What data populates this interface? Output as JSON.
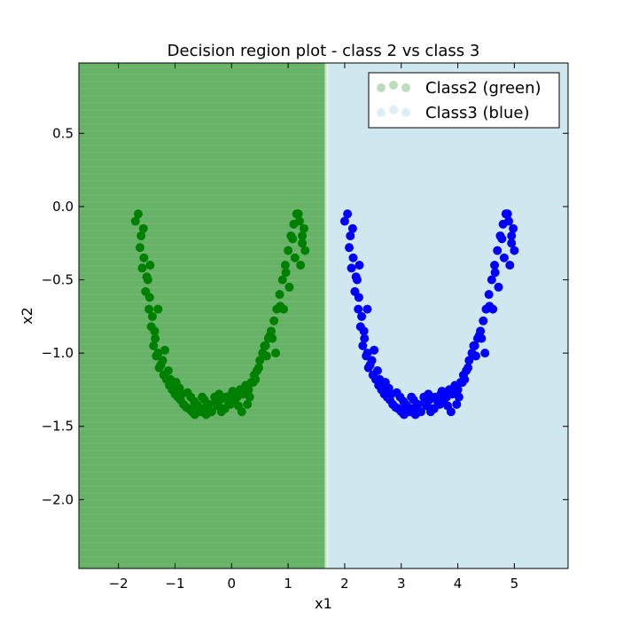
{
  "chart_data": {
    "type": "scatter",
    "title": "Decision region plot - class 2 vs class 3",
    "xlabel": "x1",
    "ylabel": "x2",
    "xlim": [
      -2.7,
      5.95
    ],
    "ylim": [
      -2.47,
      0.98
    ],
    "xticks": [
      -2,
      -1,
      0,
      1,
      2,
      3,
      4,
      5
    ],
    "yticks": [
      0.5,
      0.0,
      -0.5,
      -1.0,
      -1.5,
      -2.0
    ],
    "xtick_labels": [
      "−2",
      "−1",
      "0",
      "1",
      "2",
      "3",
      "4",
      "5"
    ],
    "ytick_labels": [
      "0.5",
      "0.0",
      "−0.5",
      "−1.0",
      "−1.5",
      "−2.0"
    ],
    "grid": false,
    "legend_position": "top-right",
    "decision_boundary_x": 1.68,
    "regions": [
      {
        "class": "Class2",
        "x_range": [
          -2.7,
          1.68
        ],
        "color": "#66b266"
      },
      {
        "class": "Class3",
        "x_range": [
          1.68,
          5.95
        ],
        "color": "#cfe7ef"
      }
    ],
    "series": [
      {
        "name": "Class2 (green)",
        "color": "#008000",
        "legend_color": "#bcdcbc",
        "x": [
          -1.65,
          -1.6,
          -1.55,
          -1.5,
          -1.45,
          -1.4,
          -1.35,
          -1.3,
          -1.25,
          -1.7,
          -1.62,
          -1.58,
          -1.52,
          -1.46,
          -1.42,
          -1.38,
          -1.33,
          -1.28,
          -1.2,
          -1.15,
          -1.1,
          -1.05,
          -1.0,
          -0.95,
          -0.9,
          -0.85,
          -0.8,
          -0.75,
          -0.7,
          -0.65,
          -0.6,
          -0.55,
          -0.5,
          -0.45,
          -0.4,
          -0.35,
          -0.3,
          -0.25,
          -0.2,
          -0.15,
          -0.1,
          -0.05,
          0.0,
          0.05,
          0.1,
          0.15,
          0.2,
          0.25,
          0.3,
          0.35,
          0.4,
          0.45,
          0.5,
          0.55,
          0.6,
          0.65,
          0.7,
          0.75,
          0.8,
          0.85,
          0.9,
          0.95,
          1.0,
          1.05,
          1.1,
          1.15,
          1.2,
          1.25,
          1.3,
          -1.48,
          -1.36,
          -1.22,
          -1.12,
          -0.98,
          -0.88,
          -0.72,
          -0.62,
          -0.48,
          -0.38,
          -0.22,
          -0.12,
          0.02,
          0.12,
          0.22,
          0.32,
          0.42,
          0.58,
          0.68,
          0.78,
          0.92,
          1.02,
          1.12,
          1.22,
          1.28,
          -1.56,
          -1.44,
          -1.3,
          -1.18,
          -1.08,
          -0.92,
          -0.78,
          -0.66,
          -0.52,
          -0.42,
          -0.28,
          -0.18,
          -0.02,
          0.08,
          0.18,
          0.28,
          0.38,
          0.48,
          0.62,
          0.72,
          0.86,
          0.96,
          1.08,
          1.18,
          1.25
        ],
        "y": [
          -0.05,
          -0.2,
          -0.35,
          -0.48,
          -0.62,
          -0.75,
          -0.9,
          -1.0,
          -1.08,
          -0.1,
          -0.28,
          -0.42,
          -0.58,
          -0.7,
          -0.82,
          -0.95,
          -1.02,
          -1.1,
          -1.15,
          -1.18,
          -1.22,
          -1.25,
          -1.28,
          -1.3,
          -1.32,
          -1.35,
          -1.37,
          -1.38,
          -1.4,
          -1.42,
          -1.36,
          -1.4,
          -1.38,
          -1.42,
          -1.35,
          -1.4,
          -1.3,
          -1.36,
          -1.32,
          -1.38,
          -1.3,
          -1.34,
          -1.28,
          -1.32,
          -1.3,
          -1.25,
          -1.28,
          -1.22,
          -1.25,
          -1.2,
          -1.15,
          -1.12,
          -1.05,
          -1.0,
          -0.95,
          -0.9,
          -0.85,
          -0.78,
          -0.7,
          -0.6,
          -0.5,
          -0.4,
          -0.3,
          -0.2,
          -0.12,
          -0.05,
          -0.1,
          -0.2,
          -0.3,
          -0.5,
          -0.85,
          -1.05,
          -1.12,
          -1.2,
          -1.28,
          -1.3,
          -1.35,
          -1.32,
          -1.4,
          -1.28,
          -1.38,
          -1.26,
          -1.36,
          -1.24,
          -1.3,
          -1.18,
          -0.95,
          -0.88,
          -1.0,
          -0.7,
          -0.55,
          -0.35,
          -0.4,
          -0.15,
          -0.15,
          -0.4,
          -0.7,
          -0.98,
          -1.18,
          -1.24,
          -1.27,
          -1.33,
          -1.3,
          -1.36,
          -1.33,
          -1.4,
          -1.35,
          -1.3,
          -1.4,
          -1.35,
          -1.2,
          -1.1,
          -1.02,
          -0.9,
          -0.68,
          -0.45,
          -0.22,
          -0.05,
          -0.25
        ]
      },
      {
        "name": "Class3 (blue)",
        "color": "#0000ff",
        "legend_color": "#dceff5",
        "x": [
          2.05,
          2.1,
          2.15,
          2.2,
          2.25,
          2.3,
          2.35,
          2.4,
          2.45,
          2.0,
          2.08,
          2.12,
          2.18,
          2.24,
          2.28,
          2.32,
          2.38,
          2.42,
          2.5,
          2.55,
          2.6,
          2.65,
          2.7,
          2.75,
          2.8,
          2.85,
          2.9,
          2.95,
          3.0,
          3.05,
          3.1,
          3.15,
          3.2,
          3.25,
          3.3,
          3.35,
          3.4,
          3.45,
          3.5,
          3.55,
          3.6,
          3.65,
          3.7,
          3.75,
          3.8,
          3.85,
          3.9,
          3.95,
          4.0,
          4.05,
          4.1,
          4.15,
          4.2,
          4.25,
          4.3,
          4.35,
          4.4,
          4.45,
          4.5,
          4.55,
          4.6,
          4.65,
          4.7,
          4.75,
          4.8,
          4.85,
          4.9,
          4.95,
          5.0,
          2.22,
          2.34,
          2.48,
          2.58,
          2.72,
          2.82,
          2.98,
          3.08,
          3.22,
          3.32,
          3.48,
          3.58,
          3.72,
          3.82,
          3.92,
          4.02,
          4.12,
          4.28,
          4.38,
          4.48,
          4.62,
          4.72,
          4.82,
          4.92,
          4.98,
          2.14,
          2.26,
          2.4,
          2.52,
          2.62,
          2.78,
          2.92,
          3.04,
          3.18,
          3.28,
          3.42,
          3.52,
          3.68,
          3.78,
          3.88,
          3.98,
          4.08,
          4.18,
          4.32,
          4.42,
          4.56,
          4.66,
          4.78,
          4.88,
          4.95
        ],
        "y": [
          -0.05,
          -0.2,
          -0.35,
          -0.48,
          -0.62,
          -0.75,
          -0.9,
          -1.0,
          -1.08,
          -0.1,
          -0.28,
          -0.42,
          -0.58,
          -0.7,
          -0.82,
          -0.95,
          -1.02,
          -1.1,
          -1.15,
          -1.18,
          -1.22,
          -1.25,
          -1.28,
          -1.3,
          -1.32,
          -1.35,
          -1.37,
          -1.38,
          -1.4,
          -1.42,
          -1.36,
          -1.4,
          -1.38,
          -1.42,
          -1.35,
          -1.4,
          -1.3,
          -1.36,
          -1.32,
          -1.38,
          -1.3,
          -1.34,
          -1.28,
          -1.32,
          -1.3,
          -1.25,
          -1.28,
          -1.22,
          -1.25,
          -1.2,
          -1.15,
          -1.12,
          -1.05,
          -1.0,
          -0.95,
          -0.9,
          -0.85,
          -0.78,
          -0.7,
          -0.6,
          -0.5,
          -0.4,
          -0.3,
          -0.2,
          -0.12,
          -0.05,
          -0.1,
          -0.2,
          -0.3,
          -0.5,
          -0.85,
          -1.05,
          -1.12,
          -1.2,
          -1.28,
          -1.3,
          -1.35,
          -1.32,
          -1.4,
          -1.28,
          -1.38,
          -1.26,
          -1.36,
          -1.24,
          -1.3,
          -1.18,
          -0.95,
          -0.88,
          -1.0,
          -0.7,
          -0.55,
          -0.35,
          -0.4,
          -0.15,
          -0.15,
          -0.4,
          -0.7,
          -0.98,
          -1.18,
          -1.24,
          -1.27,
          -1.33,
          -1.3,
          -1.36,
          -1.33,
          -1.4,
          -1.35,
          -1.3,
          -1.4,
          -1.35,
          -1.2,
          -1.1,
          -1.02,
          -0.9,
          -0.68,
          -0.45,
          -0.22,
          -0.05,
          -0.25
        ]
      }
    ]
  }
}
